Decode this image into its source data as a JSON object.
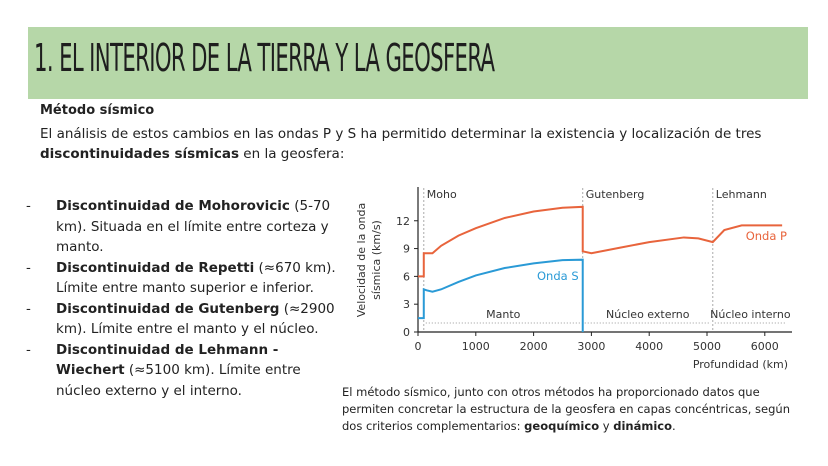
{
  "header": {
    "title": "1.  EL INTERIOR DE LA TIERRA Y LA GEOSFERA",
    "band_color": "#b6d7a8"
  },
  "section": {
    "subtitle": "Método sísmico",
    "intro_pre": "El análisis de estos cambios en las ondas P y S ha permitido determinar la existencia y localización de tres ",
    "intro_bold": "discontinuidades sísmicas",
    "intro_post": " en la geosfera:"
  },
  "list": [
    {
      "bold": "Discontinuidad de Mohorovicic",
      "text": " (5-70 km). Situada en el límite entre corteza y manto."
    },
    {
      "bold": "Discontinuidad de Repetti",
      "text": " (≈670 km). Límite entre manto superior e inferior."
    },
    {
      "bold": "Discontinuidad de Gutenberg",
      "text": " (≈2900 km). Límite entre el manto y el núcleo."
    },
    {
      "bold": "Discontinuidad de Lehmann - Wiechert",
      "text": " (≈5100 km). Límite entre núcleo externo y el interno."
    }
  ],
  "caption": {
    "pre": "El método sísmico, junto con otros métodos  ha proporcionado datos que permiten concretar la estructura de la geosfera en capas concéntricas, según dos criterios complementarios: ",
    "b1": "geoquímico",
    "mid": " y ",
    "b2": "dinámico",
    "post": "."
  },
  "chart_data": {
    "type": "line",
    "xlabel": "Profundidad (km)",
    "ylabel": "Velocidad de la onda sísmica (km/s)",
    "xlim": [
      0,
      6400
    ],
    "ylim": [
      0,
      15
    ],
    "xticks": [
      0,
      1000,
      2000,
      3000,
      4000,
      5000,
      6000
    ],
    "yticks": [
      0,
      3,
      6,
      9,
      12
    ],
    "series": [
      {
        "name": "Onda P",
        "color": "#e8643c",
        "points": [
          [
            0,
            6
          ],
          [
            100,
            6
          ],
          [
            100,
            8.5
          ],
          [
            250,
            8.5
          ],
          [
            400,
            9.3
          ],
          [
            700,
            10.4
          ],
          [
            1000,
            11.2
          ],
          [
            1500,
            12.3
          ],
          [
            2000,
            13
          ],
          [
            2500,
            13.4
          ],
          [
            2850,
            13.5
          ],
          [
            2850,
            8.7
          ],
          [
            3000,
            8.5
          ],
          [
            3500,
            9.1
          ],
          [
            4000,
            9.7
          ],
          [
            4600,
            10.2
          ],
          [
            4850,
            10.1
          ],
          [
            5100,
            9.7
          ],
          [
            5300,
            11
          ],
          [
            5600,
            11.5
          ],
          [
            6300,
            11.5
          ]
        ]
      },
      {
        "name": "Onda S",
        "color": "#2a9ad6",
        "points": [
          [
            0,
            1.5
          ],
          [
            100,
            1.5
          ],
          [
            100,
            4.6
          ],
          [
            150,
            4.5
          ],
          [
            250,
            4.35
          ],
          [
            400,
            4.6
          ],
          [
            700,
            5.4
          ],
          [
            1000,
            6.1
          ],
          [
            1500,
            6.9
          ],
          [
            2000,
            7.4
          ],
          [
            2500,
            7.75
          ],
          [
            2850,
            7.8
          ],
          [
            2850,
            0
          ]
        ]
      }
    ],
    "discontinuities": [
      {
        "label": "Moho",
        "x": 100
      },
      {
        "label": "Gutenberg",
        "x": 2850
      },
      {
        "label": "Lehmann",
        "x": 5100
      }
    ],
    "layers": [
      {
        "label": "Manto",
        "from": 100,
        "to": 2850
      },
      {
        "label": "Núcleo externo",
        "from": 2850,
        "to": 5100
      },
      {
        "label": "Núcleo interno",
        "from": 5100,
        "to": 6400
      }
    ]
  }
}
